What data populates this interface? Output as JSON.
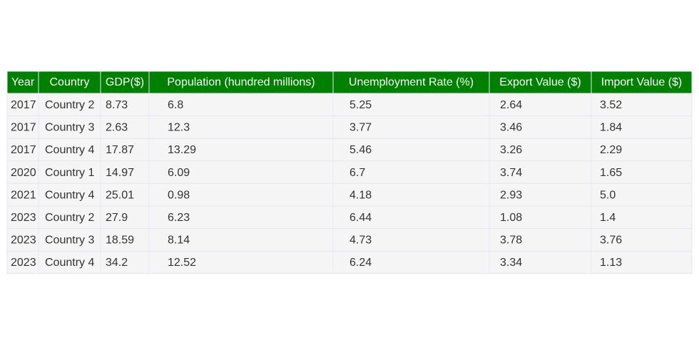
{
  "chart_data": {
    "type": "table",
    "columns": [
      "Year",
      "Country",
      "GDP($)",
      "Population (hundred millions)",
      "Unemployment Rate (%)",
      "Export Value ($)",
      "Import Value ($)"
    ],
    "rows": [
      [
        "2017",
        "Country 2",
        "8.73",
        "6.8",
        "5.25",
        "2.64",
        "3.52"
      ],
      [
        "2017",
        "Country 3",
        "2.63",
        "12.3",
        "3.77",
        "3.46",
        "1.84"
      ],
      [
        "2017",
        "Country 4",
        "17.87",
        "13.29",
        "5.46",
        "3.26",
        "2.29"
      ],
      [
        "2020",
        "Country 1",
        "14.97",
        "6.09",
        "6.7",
        "3.74",
        "1.65"
      ],
      [
        "2021",
        "Country 4",
        "25.01",
        "0.98",
        "4.18",
        "2.93",
        "5.0"
      ],
      [
        "2023",
        "Country 2",
        "27.9",
        "6.23",
        "6.44",
        "1.08",
        "1.4"
      ],
      [
        "2023",
        "Country 3",
        "18.59",
        "8.14",
        "4.73",
        "3.78",
        "3.76"
      ],
      [
        "2023",
        "Country 4",
        "34.2",
        "12.52",
        "6.24",
        "3.34",
        "1.13"
      ]
    ],
    "colors": {
      "header_fill": "#008000",
      "header_text": "#ffffff",
      "cell_fill": "#f5f5f5",
      "cell_text": "#333333",
      "border": "#e6e6f5"
    }
  }
}
